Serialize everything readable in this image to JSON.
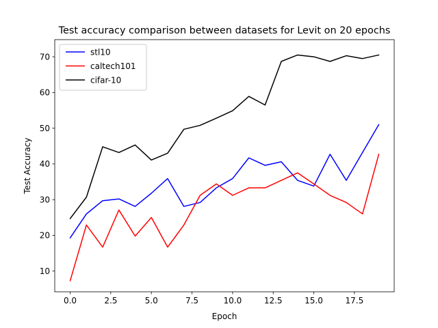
{
  "chart_data": {
    "type": "line",
    "title": "Test accuracy comparison between datasets for Levit on 20 epochs",
    "xlabel": "Epoch",
    "ylabel": "Test Accuracy",
    "xlim": [
      -0.95,
      19.95
    ],
    "ylim": [
      4.2,
      74.8
    ],
    "xticks": [
      0.0,
      2.5,
      5.0,
      7.5,
      10.0,
      12.5,
      15.0,
      17.5
    ],
    "xtick_labels": [
      "0.0",
      "2.5",
      "5.0",
      "7.5",
      "10.0",
      "12.5",
      "15.0",
      "17.5"
    ],
    "yticks": [
      10,
      20,
      30,
      40,
      50,
      60,
      70
    ],
    "ytick_labels": [
      "10",
      "20",
      "30",
      "40",
      "50",
      "60",
      "70"
    ],
    "grid": false,
    "legend_position": "top-left",
    "x": [
      0,
      1,
      2,
      3,
      4,
      5,
      6,
      7,
      8,
      9,
      10,
      11,
      12,
      13,
      14,
      15,
      16,
      17,
      18,
      19
    ],
    "series": [
      {
        "name": "stl10",
        "color": "#0000ff",
        "values": [
          19.3,
          26.0,
          29.7,
          30.2,
          28.1,
          31.8,
          35.9,
          28.1,
          29.2,
          33.3,
          35.9,
          41.7,
          39.6,
          40.6,
          35.4,
          33.8,
          42.7,
          35.4,
          43.2,
          51.0
        ]
      },
      {
        "name": "caltech101",
        "color": "#ff0000",
        "values": [
          7.3,
          22.9,
          16.7,
          27.1,
          19.8,
          25.0,
          16.7,
          22.9,
          31.2,
          34.4,
          31.2,
          33.3,
          33.3,
          35.4,
          37.5,
          34.4,
          31.2,
          29.2,
          26.0,
          42.7
        ]
      },
      {
        "name": "cifar-10",
        "color": "#000000",
        "values": [
          24.7,
          30.7,
          44.8,
          43.2,
          45.3,
          41.1,
          43.0,
          49.7,
          50.8,
          52.8,
          54.9,
          58.9,
          56.5,
          68.7,
          70.5,
          70.0,
          68.7,
          70.3,
          69.5,
          70.5
        ]
      }
    ]
  }
}
